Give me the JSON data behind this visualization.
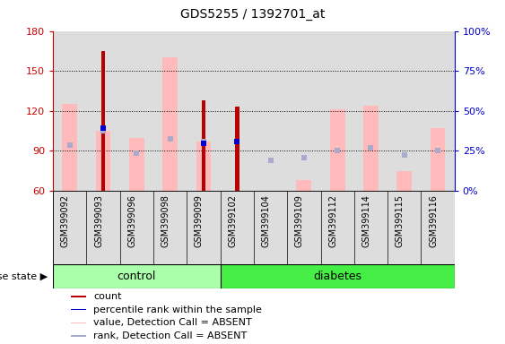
{
  "title": "GDS5255 / 1392701_at",
  "samples": [
    "GSM399092",
    "GSM399093",
    "GSM399096",
    "GSM399098",
    "GSM399099",
    "GSM399102",
    "GSM399104",
    "GSM399109",
    "GSM399112",
    "GSM399114",
    "GSM399115",
    "GSM399116"
  ],
  "groups": [
    "control",
    "control",
    "control",
    "control",
    "control",
    "diabetes",
    "diabetes",
    "diabetes",
    "diabetes",
    "diabetes",
    "diabetes",
    "diabetes"
  ],
  "ylim_left": [
    60,
    180
  ],
  "ylim_right": [
    0,
    100
  ],
  "yticks_left": [
    60,
    90,
    120,
    150,
    180
  ],
  "yticks_right": [
    0,
    25,
    50,
    75,
    100
  ],
  "ytick_right_labels": [
    "0%",
    "25%",
    "50%",
    "75%",
    "100%"
  ],
  "bar_color_red": "#bb0000",
  "bar_color_pink": "#ffbbbb",
  "bar_color_blue_dark": "#0000cc",
  "bar_color_blue_light": "#aaaacc",
  "count_values": [
    0,
    165,
    0,
    0,
    128,
    123,
    0,
    0,
    0,
    0,
    0,
    0
  ],
  "value_absent_top": [
    125,
    105,
    100,
    160,
    97,
    0,
    0,
    68,
    121,
    124,
    75,
    107
  ],
  "rank_absent_values": [
    94,
    105,
    88,
    99,
    97,
    0,
    83,
    85,
    90,
    92,
    87,
    90
  ],
  "percentile_rank_values": [
    0,
    107,
    0,
    0,
    96,
    97,
    0,
    0,
    0,
    0,
    0,
    0
  ],
  "group_colors": {
    "control": "#aaffaa",
    "diabetes": "#44ee44"
  },
  "col_bg_color": "#dddddd",
  "bg_color": "#ffffff",
  "axis_color_left": "#cc0000",
  "axis_color_right": "#0000cc",
  "tick_fontsize": 8,
  "sample_fontsize": 7,
  "group_label_fontsize": 9,
  "title_fontsize": 10,
  "legend_fontsize": 8,
  "grid_yticks": [
    90,
    120,
    150
  ]
}
